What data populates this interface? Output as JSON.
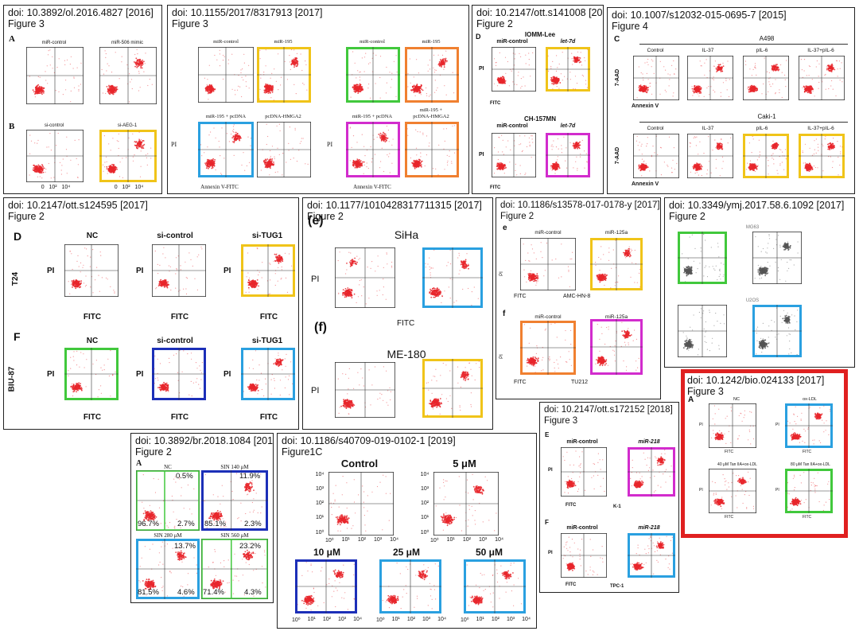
{
  "colors": {
    "highlight_yellow": "#f0c419",
    "highlight_green": "#41c83c",
    "highlight_orange": "#f08030",
    "highlight_magenta": "#d22ccd",
    "highlight_blue": "#2aa0e0",
    "highlight_navy": "#1c2fb8",
    "highlight_red": "#e02020",
    "dots": "#e8262b"
  },
  "panels": [
    {
      "doi": "doi: 10.3892/ol.2016.4827 [2016]",
      "figure": "Figure 3",
      "letters": [
        "A",
        "B"
      ],
      "labels": [
        "miR-control",
        "miR-506 mimic",
        "si-control",
        "si-AEG-1"
      ],
      "ticks": [
        "0",
        "10²",
        "10⁴"
      ]
    },
    {
      "doi": "doi: 10.1155/2017/8317913 [2017]",
      "figure": "Figure 3",
      "labels": [
        "miR-control",
        "miR-195",
        "miR-195 + pcDNA",
        "pcDNA-HMGA2",
        "miR-195 +",
        "miR-195 + pcDNA"
      ],
      "axis_x": "Annexin V-FITC",
      "axis_y": "PI"
    },
    {
      "doi": "doi: 10.2147/ott.s141008 [2017]",
      "figure": "Figure 2",
      "letters": [
        "D"
      ],
      "labels": [
        "IOMM-Lee",
        "miR-control",
        "let-7d",
        "CH-157MN",
        "miR-control",
        "let-7d"
      ],
      "axis_x": "FITC",
      "axis_y": "PI"
    },
    {
      "doi": "doi: 10.1007/s12032-015-0695-7 [2015]",
      "figure": "Figure 4",
      "letters": [
        "C"
      ],
      "labels": [
        "A498",
        "Control",
        "IL-37",
        "pIL-6",
        "IL-37+pIL-6",
        "Caki-1",
        "Control",
        "IL-37",
        "pIL-6",
        "IL-37+pIL-6"
      ],
      "axis_x": "Annexin V",
      "axis_y": "7-AAD"
    },
    {
      "doi": "doi: 10.2147/ott.s124595 [2017]",
      "figure": "Figure 2",
      "letters": [
        "D",
        "F"
      ],
      "row_labels": [
        "T24",
        "BIU-87"
      ],
      "labels": [
        "NC",
        "si-control",
        "si-TUG1",
        "NC",
        "si-control",
        "si-TUG1"
      ],
      "axis_x": "FITC",
      "axis_y": "PI"
    },
    {
      "doi": "doi: 10.1177/1010428317711315 [2017]",
      "figure": "Figure 2",
      "letters": [
        "(e)",
        "(f)"
      ],
      "labels": [
        "SiHa",
        "ME-180"
      ],
      "axis_x": "FITC",
      "axis_y": "PI"
    },
    {
      "doi": "doi: 10.1186/s13578-017-0178-y [2017]",
      "figure": "Figure 2",
      "letters": [
        "e",
        "f"
      ],
      "labels": [
        "miR-control",
        "miR-125a",
        "miR-control",
        "miR-125a"
      ],
      "sub_labels": [
        "AMC-HN-8",
        "TU212"
      ],
      "axis_x": "FITC",
      "axis_y": "PI"
    },
    {
      "doi": "doi: 10.3349/ymj.2017.58.6.1092 [2017]",
      "figure": "Figure 2",
      "labels": [
        "MG63",
        "U2OS"
      ]
    },
    {
      "doi": "doi: 10.1242/bio.024133 [2017]",
      "figure": "Figure 3",
      "letters": [
        "A"
      ],
      "labels": [
        "NC",
        "ox-LDL",
        "40 μM Tan IIA+ox-LDL",
        "80 μM Tan IIA+ox-LDL"
      ],
      "axis_x": "FITC",
      "axis_y": "PI"
    },
    {
      "doi": "doi: 10.2147/ott.s172152 [2018]",
      "figure": "Figure 3",
      "letters": [
        "E",
        "F"
      ],
      "labels": [
        "miR-control",
        "miR-218",
        "miR-control",
        "miR-218"
      ],
      "sub_labels": [
        "K-1",
        "TPC-1"
      ],
      "axis_x": "FITC",
      "axis_y": "PI"
    },
    {
      "doi": "doi: 10.3892/br.2018.1084 [2018]",
      "figure": "Figure 2",
      "letters": [
        "A"
      ],
      "labels": [
        "NC",
        "SIN  140 μM",
        "SIN  280 μM",
        "SIN  560 μM"
      ],
      "percents": [
        [
          "0.5%",
          "96.7%",
          "2.7%"
        ],
        [
          "11.9%",
          "85.1%",
          "2.3%"
        ],
        [
          "13.7%",
          "81.5%",
          "4.6%"
        ],
        [
          "23.2%",
          "71.4%",
          "4.3%"
        ]
      ]
    },
    {
      "doi": "doi: 10.1186/s40709-019-0102-1 [2019]",
      "figure": "Figure1C",
      "labels": [
        "Control",
        "5 μM",
        "10 μM",
        "25 μM",
        "50 μM"
      ],
      "ticks_x": [
        "10⁰",
        "10¹",
        "10²",
        "10³",
        "10⁴"
      ],
      "ticks_y": [
        "10⁴",
        "10³",
        "10²",
        "10¹",
        "10⁰"
      ]
    }
  ]
}
